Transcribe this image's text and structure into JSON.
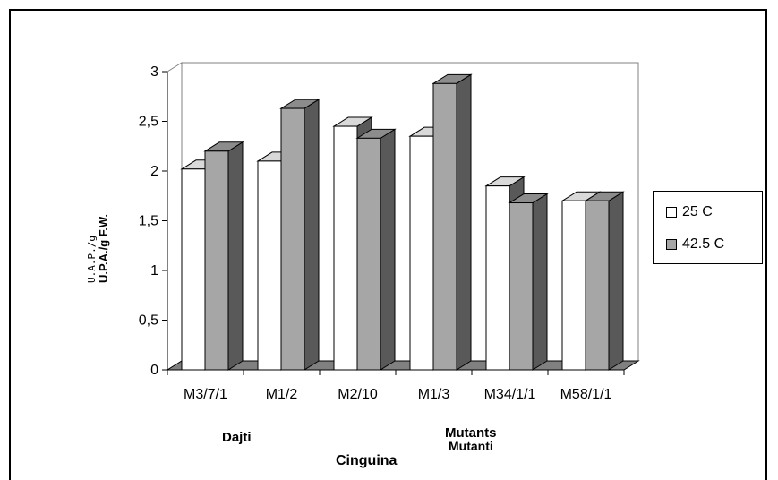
{
  "chart_data": {
    "type": "bar",
    "categories": [
      "M3/7/1",
      "M1/2",
      "M2/10",
      "M1/3",
      "M34/1/1",
      "M58/1/1"
    ],
    "series": [
      {
        "name": "25 C",
        "values": [
          2.02,
          2.1,
          2.45,
          2.35,
          1.85,
          1.7
        ],
        "color": "#ffffff"
      },
      {
        "name": "42.5 C",
        "values": [
          2.2,
          2.63,
          2.33,
          2.88,
          1.68,
          1.7
        ],
        "color": "#a6a6a6"
      }
    ],
    "ylim": [
      0,
      3
    ],
    "yticks": [
      "0",
      "0,5",
      "1",
      "1,5",
      "2",
      "2,5",
      "3"
    ],
    "ylabel_lines": [
      "U.A.P./g",
      "U.P.A./g F.W."
    ],
    "group_labels": [
      "Dajti",
      "Mutants",
      "Mutanti",
      "Cinguina"
    ],
    "legend_position": "right",
    "style": "3d-clustered",
    "side_color": "#595959",
    "floor_color": "#808080"
  }
}
